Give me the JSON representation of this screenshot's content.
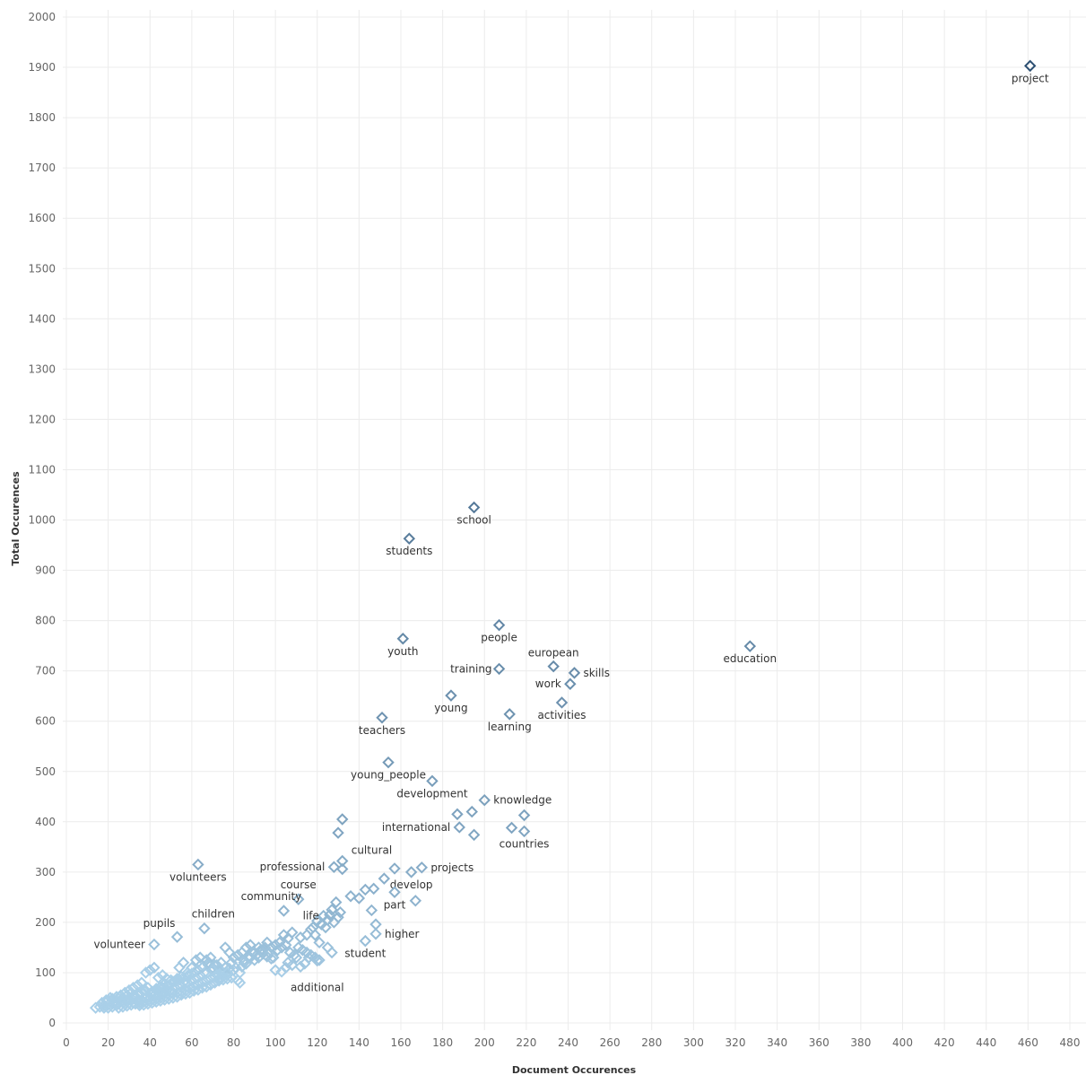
{
  "chart_data": {
    "type": "scatter",
    "xlabel": "Document Occurences",
    "ylabel": "Total Occurences",
    "xlim": [
      0,
      480
    ],
    "ylim": [
      0,
      2000
    ],
    "x_ticks": [
      0,
      20,
      40,
      60,
      80,
      100,
      120,
      140,
      160,
      180,
      200,
      220,
      240,
      260,
      280,
      300,
      320,
      340,
      360,
      380,
      400,
      420,
      440,
      460,
      480
    ],
    "y_ticks": [
      0,
      100,
      200,
      300,
      400,
      500,
      600,
      700,
      800,
      900,
      1000,
      1100,
      1200,
      1300,
      1400,
      1500,
      1600,
      1700,
      1800,
      1900,
      2000
    ],
    "grid": true,
    "color_scale": {
      "low": "#a9cfe8",
      "high": "#2c4f72"
    },
    "labeled_points": [
      {
        "label": "project",
        "x": 461,
        "y": 1903
      },
      {
        "label": "school",
        "x": 195,
        "y": 1025
      },
      {
        "label": "students",
        "x": 164,
        "y": 963
      },
      {
        "label": "people",
        "x": 207,
        "y": 791
      },
      {
        "label": "youth",
        "x": 161,
        "y": 764
      },
      {
        "label": "education",
        "x": 327,
        "y": 749
      },
      {
        "label": "european",
        "x": 233,
        "y": 709
      },
      {
        "label": "training",
        "x": 207,
        "y": 704
      },
      {
        "label": "skills",
        "x": 243,
        "y": 696
      },
      {
        "label": "work",
        "x": 241,
        "y": 674
      },
      {
        "label": "young",
        "x": 184,
        "y": 651
      },
      {
        "label": "activities",
        "x": 237,
        "y": 637
      },
      {
        "label": "learning",
        "x": 212,
        "y": 614
      },
      {
        "label": "teachers",
        "x": 151,
        "y": 607
      },
      {
        "label": "young_people",
        "x": 154,
        "y": 518
      },
      {
        "label": "development",
        "x": 175,
        "y": 481
      },
      {
        "label": "knowledge",
        "x": 200,
        "y": 443
      },
      {
        "label": "international",
        "x": 188,
        "y": 389
      },
      {
        "label": "countries",
        "x": 219,
        "y": 381
      },
      {
        "label": "cultural",
        "x": 132,
        "y": 322
      },
      {
        "label": "projects",
        "x": 170,
        "y": 309
      },
      {
        "label": "professional",
        "x": 128,
        "y": 310
      },
      {
        "label": "volunteers",
        "x": 63,
        "y": 315
      },
      {
        "label": "develop",
        "x": 165,
        "y": 300
      },
      {
        "label": "course",
        "x": 111,
        "y": 246
      },
      {
        "label": "community",
        "x": 104,
        "y": 223
      },
      {
        "label": "part",
        "x": 157,
        "y": 260
      },
      {
        "label": "children",
        "x": 66,
        "y": 188
      },
      {
        "label": "life",
        "x": 117,
        "y": 186
      },
      {
        "label": "pupils",
        "x": 53,
        "y": 171
      },
      {
        "label": "higher",
        "x": 148,
        "y": 177
      },
      {
        "label": "volunteer",
        "x": 42,
        "y": 156
      },
      {
        "label": "student",
        "x": 143,
        "y": 163
      },
      {
        "label": "additional",
        "x": 120,
        "y": 124
      }
    ],
    "points": [
      [
        132,
        405
      ],
      [
        130,
        378
      ],
      [
        187,
        415
      ],
      [
        194,
        420
      ],
      [
        195,
        374
      ],
      [
        213,
        388
      ],
      [
        219,
        413
      ],
      [
        147,
        267
      ],
      [
        152,
        287
      ],
      [
        157,
        307
      ],
      [
        167,
        243
      ],
      [
        143,
        265
      ],
      [
        132,
        306
      ],
      [
        140,
        248
      ],
      [
        136,
        252
      ],
      [
        146,
        224
      ],
      [
        148,
        196
      ],
      [
        131,
        220
      ],
      [
        129,
        240
      ],
      [
        127,
        225
      ],
      [
        123,
        213
      ],
      [
        120,
        203
      ],
      [
        118,
        190
      ],
      [
        115,
        175
      ],
      [
        112,
        170
      ],
      [
        108,
        180
      ],
      [
        106,
        168
      ],
      [
        104,
        175
      ],
      [
        102,
        160
      ],
      [
        100,
        155
      ],
      [
        98,
        150
      ],
      [
        96,
        160
      ],
      [
        94,
        145
      ],
      [
        92,
        150
      ],
      [
        90,
        140
      ],
      [
        88,
        155
      ],
      [
        86,
        150
      ],
      [
        84,
        140
      ],
      [
        82,
        135
      ],
      [
        80,
        130
      ],
      [
        78,
        140
      ],
      [
        76,
        150
      ],
      [
        74,
        120
      ],
      [
        72,
        115
      ],
      [
        70,
        110
      ],
      [
        68,
        120
      ],
      [
        66,
        100
      ],
      [
        64,
        95
      ],
      [
        62,
        90
      ],
      [
        60,
        85
      ],
      [
        58,
        80
      ],
      [
        56,
        80
      ],
      [
        54,
        75
      ],
      [
        52,
        70
      ],
      [
        50,
        65
      ],
      [
        48,
        65
      ],
      [
        46,
        60
      ],
      [
        44,
        55
      ],
      [
        42,
        55
      ],
      [
        40,
        50
      ],
      [
        38,
        50
      ],
      [
        36,
        45
      ],
      [
        34,
        45
      ],
      [
        32,
        40
      ],
      [
        30,
        40
      ],
      [
        28,
        38
      ],
      [
        26,
        35
      ],
      [
        24,
        35
      ],
      [
        22,
        32
      ],
      [
        20,
        30
      ],
      [
        18,
        30
      ],
      [
        16,
        32
      ],
      [
        14,
        30
      ],
      [
        17,
        40
      ],
      [
        19,
        45
      ],
      [
        21,
        50
      ],
      [
        23,
        42
      ],
      [
        25,
        48
      ],
      [
        27,
        50
      ],
      [
        29,
        55
      ],
      [
        31,
        60
      ],
      [
        33,
        52
      ],
      [
        35,
        58
      ],
      [
        37,
        65
      ],
      [
        39,
        70
      ],
      [
        41,
        62
      ],
      [
        43,
        68
      ],
      [
        45,
        72
      ],
      [
        47,
        78
      ],
      [
        49,
        75
      ],
      [
        51,
        82
      ],
      [
        53,
        88
      ],
      [
        55,
        92
      ],
      [
        57,
        85
      ],
      [
        59,
        95
      ],
      [
        61,
        100
      ],
      [
        63,
        105
      ],
      [
        65,
        110
      ],
      [
        67,
        125
      ],
      [
        69,
        130
      ],
      [
        71,
        115
      ],
      [
        73,
        108
      ],
      [
        75,
        100
      ],
      [
        77,
        95
      ],
      [
        79,
        120
      ],
      [
        81,
        110
      ],
      [
        83,
        100
      ],
      [
        85,
        125
      ],
      [
        87,
        130
      ],
      [
        89,
        140
      ],
      [
        91,
        135
      ],
      [
        93,
        145
      ],
      [
        95,
        150
      ],
      [
        97,
        140
      ],
      [
        99,
        130
      ],
      [
        101,
        145
      ],
      [
        103,
        150
      ],
      [
        105,
        155
      ],
      [
        107,
        140
      ],
      [
        109,
        135
      ],
      [
        111,
        150
      ],
      [
        113,
        145
      ],
      [
        115,
        140
      ],
      [
        117,
        135
      ],
      [
        119,
        130
      ],
      [
        121,
        125
      ],
      [
        105,
        110
      ],
      [
        100,
        105
      ],
      [
        103,
        102
      ],
      [
        108,
        115
      ],
      [
        112,
        112
      ],
      [
        82,
        85
      ],
      [
        83,
        80
      ],
      [
        80,
        105
      ],
      [
        85,
        120
      ],
      [
        60,
        110
      ],
      [
        58,
        100
      ],
      [
        56,
        120
      ],
      [
        54,
        110
      ],
      [
        62,
        125
      ],
      [
        64,
        130
      ],
      [
        68,
        115
      ],
      [
        70,
        105
      ],
      [
        72,
        95
      ],
      [
        74,
        100
      ],
      [
        76,
        110
      ],
      [
        42,
        110
      ],
      [
        40,
        105
      ],
      [
        38,
        100
      ],
      [
        44,
        90
      ],
      [
        46,
        95
      ],
      [
        48,
        88
      ],
      [
        50,
        85
      ],
      [
        36,
        80
      ],
      [
        34,
        75
      ],
      [
        32,
        70
      ],
      [
        30,
        65
      ],
      [
        28,
        60
      ],
      [
        26,
        55
      ],
      [
        24,
        52
      ],
      [
        22,
        48
      ],
      [
        20,
        45
      ],
      [
        30,
        48
      ],
      [
        32,
        52
      ],
      [
        34,
        56
      ],
      [
        36,
        60
      ],
      [
        38,
        64
      ],
      [
        40,
        58
      ],
      [
        42,
        62
      ],
      [
        44,
        66
      ],
      [
        46,
        70
      ],
      [
        48,
        74
      ],
      [
        50,
        78
      ],
      [
        52,
        82
      ],
      [
        54,
        86
      ],
      [
        56,
        90
      ],
      [
        58,
        94
      ],
      [
        60,
        98
      ],
      [
        35,
        40
      ],
      [
        37,
        42
      ],
      [
        39,
        44
      ],
      [
        41,
        46
      ],
      [
        43,
        48
      ],
      [
        45,
        50
      ],
      [
        47,
        52
      ],
      [
        49,
        55
      ],
      [
        51,
        58
      ],
      [
        53,
        60
      ],
      [
        55,
        62
      ],
      [
        57,
        64
      ],
      [
        59,
        68
      ],
      [
        61,
        72
      ],
      [
        63,
        76
      ],
      [
        65,
        80
      ],
      [
        67,
        84
      ],
      [
        69,
        88
      ],
      [
        71,
        92
      ],
      [
        73,
        96
      ],
      [
        122,
        196
      ],
      [
        125,
        205
      ],
      [
        128,
        200
      ],
      [
        124,
        190
      ],
      [
        126,
        215
      ],
      [
        130,
        210
      ],
      [
        119,
        175
      ],
      [
        121,
        160
      ],
      [
        125,
        150
      ],
      [
        127,
        140
      ],
      [
        116,
        130
      ],
      [
        114,
        118
      ],
      [
        110,
        130
      ],
      [
        106,
        120
      ],
      [
        88,
        130
      ],
      [
        90,
        125
      ],
      [
        92,
        130
      ],
      [
        94,
        138
      ],
      [
        96,
        132
      ],
      [
        98,
        128
      ],
      [
        86,
        118
      ],
      [
        84,
        112
      ],
      [
        78,
        108
      ],
      [
        77,
        100
      ],
      [
        75,
        92
      ],
      [
        73,
        88
      ],
      [
        28,
        45
      ],
      [
        26,
        42
      ],
      [
        24,
        40
      ],
      [
        22,
        38
      ],
      [
        20,
        36
      ],
      [
        18,
        35
      ],
      [
        25,
        30
      ],
      [
        27,
        32
      ],
      [
        29,
        34
      ],
      [
        31,
        36
      ],
      [
        33,
        38
      ],
      [
        35,
        35
      ],
      [
        37,
        36
      ],
      [
        39,
        38
      ],
      [
        41,
        40
      ],
      [
        43,
        42
      ],
      [
        45,
        44
      ],
      [
        47,
        46
      ],
      [
        49,
        48
      ],
      [
        51,
        50
      ],
      [
        53,
        52
      ],
      [
        55,
        56
      ],
      [
        57,
        58
      ],
      [
        59,
        60
      ],
      [
        61,
        64
      ],
      [
        63,
        66
      ],
      [
        65,
        70
      ],
      [
        67,
        72
      ],
      [
        69,
        76
      ],
      [
        71,
        80
      ],
      [
        73,
        84
      ],
      [
        75,
        86
      ],
      [
        77,
        88
      ],
      [
        79,
        90
      ]
    ]
  }
}
